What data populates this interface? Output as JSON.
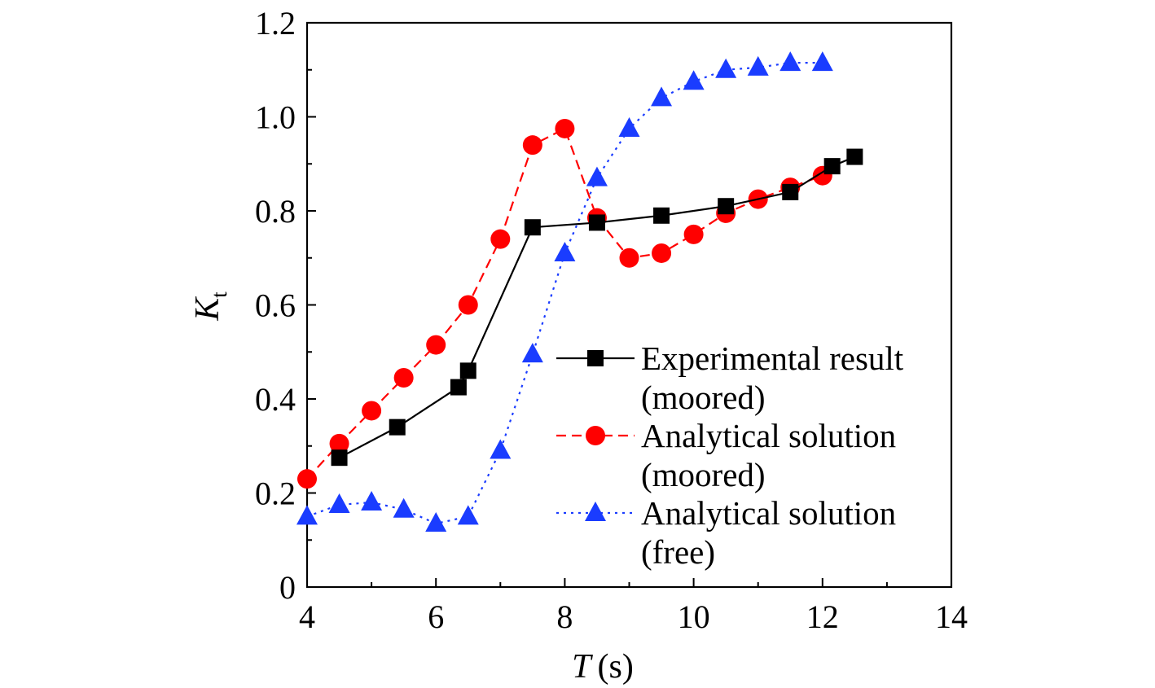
{
  "chart_data": {
    "type": "line",
    "xlabel": {
      "symbol": "T",
      "unit": "(s)"
    },
    "ylabel": {
      "symbol": "K",
      "subscript": "t"
    },
    "xlim": [
      4,
      14
    ],
    "ylim": [
      0,
      1.2
    ],
    "x_ticks": [
      "4",
      "6",
      "8",
      "10",
      "12",
      "14"
    ],
    "y_ticks": [
      "0",
      "0.2",
      "0.4",
      "0.6",
      "0.8",
      "1.0",
      "1.2"
    ],
    "grid": false,
    "legend_position": "center-right",
    "series": [
      {
        "name_line1": "Experimental result",
        "name_line2": "(moored)",
        "color": "#000000",
        "marker": "square",
        "line_style": "solid",
        "x": [
          4.5,
          5.4,
          6.35,
          6.5,
          7.5,
          8.5,
          9.5,
          10.5,
          11.5,
          12.15,
          12.5
        ],
        "y": [
          0.275,
          0.34,
          0.425,
          0.46,
          0.765,
          0.775,
          0.79,
          0.81,
          0.84,
          0.895,
          0.915
        ]
      },
      {
        "name_line1": "Analytical solution",
        "name_line2": "(moored)",
        "color": "#ff0000",
        "marker": "circle",
        "line_style": "dashed",
        "x": [
          4.0,
          4.5,
          5.0,
          5.5,
          6.0,
          6.5,
          7.0,
          7.5,
          8.0,
          8.5,
          9.0,
          9.5,
          10.0,
          10.5,
          11.0,
          11.5,
          12.0
        ],
        "y": [
          0.23,
          0.305,
          0.375,
          0.445,
          0.515,
          0.6,
          0.74,
          0.94,
          0.975,
          0.785,
          0.7,
          0.71,
          0.75,
          0.795,
          0.825,
          0.85,
          0.875
        ]
      },
      {
        "name_line1": "Analytical solution",
        "name_line2": "(free)",
        "color": "#1a3cff",
        "marker": "triangle",
        "line_style": "dotted",
        "x": [
          4.0,
          4.5,
          5.0,
          5.5,
          6.0,
          6.5,
          7.0,
          7.5,
          8.0,
          8.5,
          9.0,
          9.5,
          10.0,
          10.5,
          11.0,
          11.5,
          12.0
        ],
        "y": [
          0.15,
          0.175,
          0.18,
          0.165,
          0.135,
          0.15,
          0.29,
          0.495,
          0.71,
          0.87,
          0.975,
          1.04,
          1.075,
          1.1,
          1.105,
          1.115,
          1.115
        ]
      }
    ]
  }
}
